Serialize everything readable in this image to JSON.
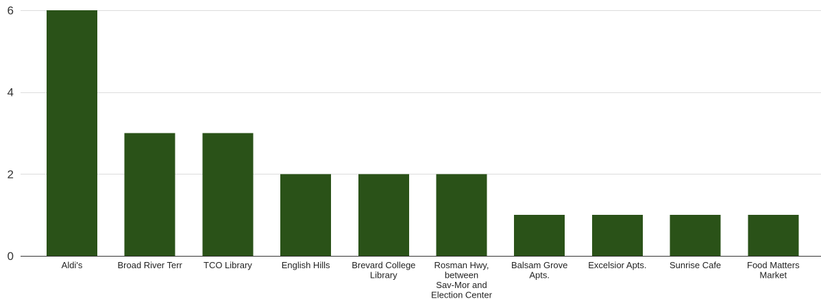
{
  "chart_data": {
    "type": "bar",
    "title": "",
    "xlabel": "",
    "ylabel": "",
    "categories": [
      "Aldi's",
      "Broad River Terr",
      "TCO Library",
      "English Hills",
      "Brevard College Library",
      "Rosman Hwy, between Sav-Mor and Election Center",
      "Balsam Grove Apts.",
      "Excelsior Apts.",
      "Sunrise Cafe",
      "Food Matters Market"
    ],
    "category_label_lines": [
      [
        "Aldi's"
      ],
      [
        "Broad River Terr"
      ],
      [
        "TCO Library"
      ],
      [
        "English Hills"
      ],
      [
        "Brevard College",
        "Library"
      ],
      [
        "Rosman Hwy,",
        "between",
        "Sav-Mor and",
        "Election Center"
      ],
      [
        "Balsam Grove",
        "Apts."
      ],
      [
        "Excelsior Apts."
      ],
      [
        "Sunrise Cafe"
      ],
      [
        "Food Matters",
        "Market"
      ]
    ],
    "values": [
      6,
      3,
      3,
      2,
      2,
      2,
      1,
      1,
      1,
      1
    ],
    "ylim": [
      0,
      6
    ],
    "yticks": [
      0,
      2,
      4,
      6
    ],
    "grid": true,
    "legend": "none",
    "bar_color": "#2a5218"
  }
}
